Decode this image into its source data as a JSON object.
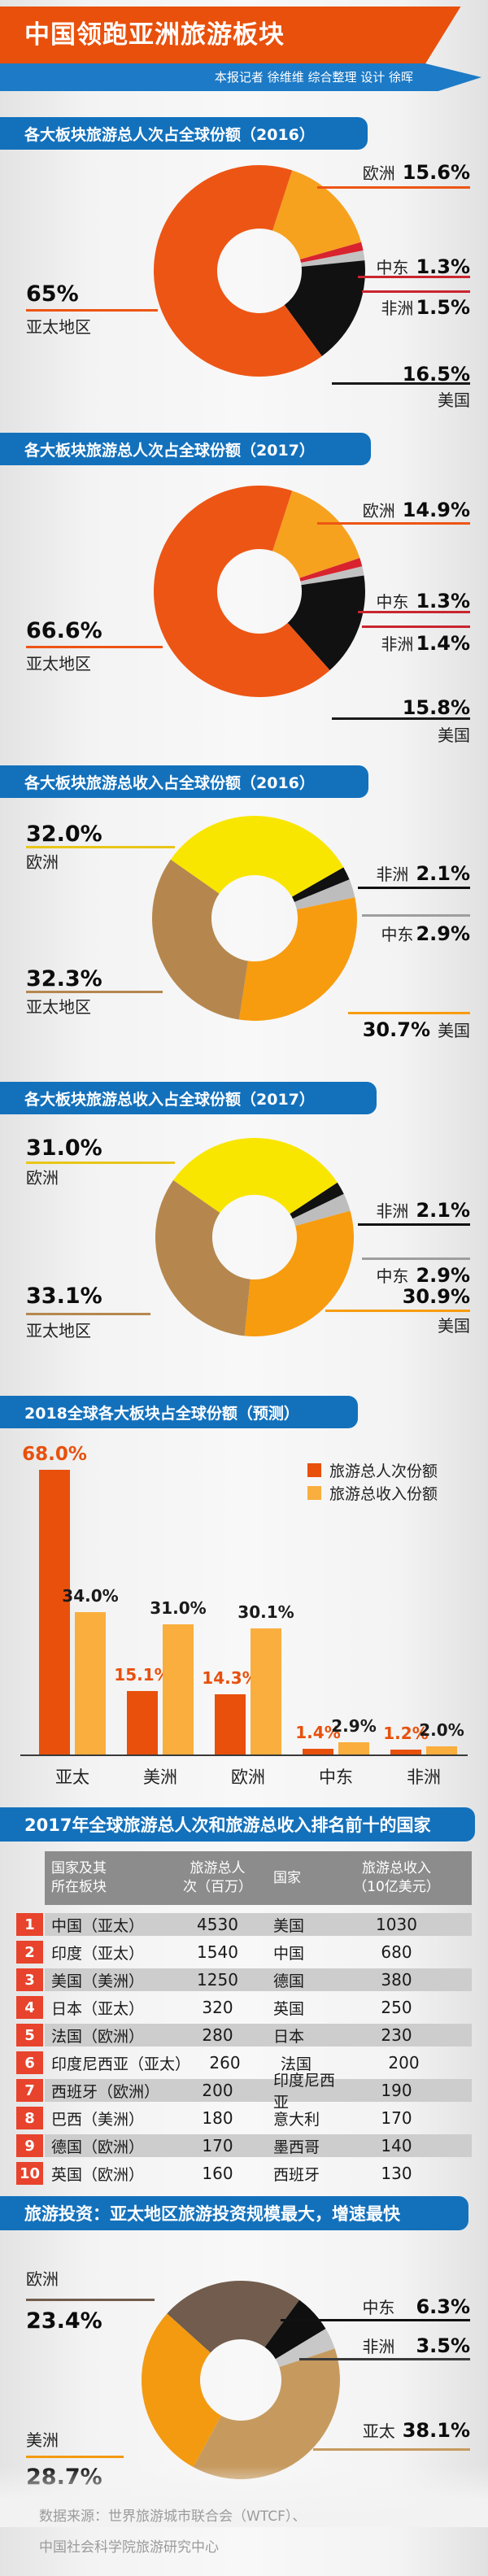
{
  "header": {
    "title": "中国领跑亚洲旅游板块",
    "byline": "本报记者 徐维维 综合整理 设计 徐晖"
  },
  "footer": {
    "source_line1": "数据来源：世界旅游城市联合会（WTCF）、",
    "source_line2": "中国社会科学院旅游研究中心"
  },
  "chart_data": [
    {
      "type": "donut",
      "title": "各大板块旅游总人次占全球份额（2016）",
      "start_angle": 18,
      "slices": [
        {
          "name": "欧洲",
          "value": 15.6,
          "display": "15.6%",
          "color": "#F6A21F"
        },
        {
          "name": "中东",
          "value": 1.3,
          "display": "1.3%",
          "color": "#D8232F"
        },
        {
          "name": "非洲",
          "value": 1.5,
          "display": "1.5%",
          "color": "#C2C2C2"
        },
        {
          "name": "美国",
          "value": 16.5,
          "display": "16.5%",
          "color": "#111111"
        },
        {
          "name": "亚太地区",
          "value": 65.0,
          "display": "65%",
          "color": "#ED5514"
        }
      ]
    },
    {
      "type": "donut",
      "title": "各大板块旅游总人次占全球份额（2017）",
      "start_angle": 18,
      "slices": [
        {
          "name": "欧洲",
          "value": 14.9,
          "display": "14.9%",
          "color": "#F6A21F"
        },
        {
          "name": "中东",
          "value": 1.3,
          "display": "1.3%",
          "color": "#D8232F"
        },
        {
          "name": "非洲",
          "value": 1.4,
          "display": "1.4%",
          "color": "#C2C2C2"
        },
        {
          "name": "美国",
          "value": 15.8,
          "display": "15.8%",
          "color": "#111111"
        },
        {
          "name": "亚太地区",
          "value": 66.6,
          "display": "66.6%",
          "color": "#ED5514"
        }
      ]
    },
    {
      "type": "donut",
      "title": "各大板块旅游总收入占全球份额（2016）",
      "start_angle": -55,
      "slices": [
        {
          "name": "欧洲",
          "value": 32.0,
          "display": "32.0%",
          "color": "#F9E600"
        },
        {
          "name": "非洲",
          "value": 2.1,
          "display": "2.1%",
          "color": "#111111"
        },
        {
          "name": "中东",
          "value": 2.9,
          "display": "2.9%",
          "color": "#BDBDBD"
        },
        {
          "name": "美国",
          "value": 30.7,
          "display": "30.7%",
          "color": "#F79C0F"
        },
        {
          "name": "亚太地区",
          "value": 32.3,
          "display": "32.3%",
          "color": "#B5874E"
        }
      ]
    },
    {
      "type": "donut",
      "title": "各大板块旅游总收入占全球份额（2017）",
      "start_angle": -55,
      "slices": [
        {
          "name": "欧洲",
          "value": 31.0,
          "display": "31.0%",
          "color": "#F9E600"
        },
        {
          "name": "非洲",
          "value": 2.1,
          "display": "2.1%",
          "color": "#111111"
        },
        {
          "name": "中东",
          "value": 2.9,
          "display": "2.9%",
          "color": "#BDBDBD"
        },
        {
          "name": "美国",
          "value": 30.9,
          "display": "30.9%",
          "color": "#F79C0F"
        },
        {
          "name": "亚太地区",
          "value": 33.1,
          "display": "33.1%",
          "color": "#B5874E"
        }
      ]
    },
    {
      "type": "bar",
      "title": "2018全球各大板块占全球份额（预测）",
      "categories": [
        "亚太",
        "美洲",
        "欧洲",
        "中东",
        "非洲"
      ],
      "ylim": [
        0,
        70
      ],
      "series": [
        {
          "name": "旅游总人次份额",
          "color": "#E8500C",
          "values": [
            68.0,
            15.1,
            14.3,
            1.4,
            1.2
          ],
          "labels": [
            "68.0%",
            "15.1%",
            "14.3%",
            "1.4%",
            "1.2%"
          ]
        },
        {
          "name": "旅游总收入份额",
          "color": "#F9AE3D",
          "values": [
            34.0,
            31.0,
            30.1,
            2.9,
            2.0
          ],
          "labels": [
            "34.0%",
            "31.0%",
            "30.1%",
            "2.9%",
            "2.0%"
          ]
        }
      ]
    },
    {
      "type": "table",
      "title": "2017年全球旅游总人次和旅游总收入排名前十的国家",
      "columns": [
        "国家及其\n所在板块",
        "旅游总人\n次（百万）",
        "国家",
        "旅游总收入\n（10亿美元）"
      ],
      "rows": [
        [
          "1",
          "中国（亚太）",
          "4530",
          "美国",
          "1030"
        ],
        [
          "2",
          "印度（亚太）",
          "1540",
          "中国",
          "680"
        ],
        [
          "3",
          "美国（美洲）",
          "1250",
          "德国",
          "380"
        ],
        [
          "4",
          "日本（亚太）",
          "320",
          "英国",
          "250"
        ],
        [
          "5",
          "法国（欧洲）",
          "280",
          "日本",
          "230"
        ],
        [
          "6",
          "印度尼西亚（亚太）",
          "260",
          "法国",
          "200"
        ],
        [
          "7",
          "西班牙（欧洲）",
          "200",
          "印度尼西亚",
          "190"
        ],
        [
          "8",
          "巴西（美洲）",
          "180",
          "意大利",
          "170"
        ],
        [
          "9",
          "德国（欧洲）",
          "170",
          "墨西哥",
          "140"
        ],
        [
          "10",
          "英国（欧洲）",
          "160",
          "西班牙",
          "130"
        ]
      ]
    },
    {
      "type": "donut",
      "title": "旅游投资：亚太地区旅游投资规模最大，增速最快",
      "start_angle": -48,
      "slices": [
        {
          "name": "欧洲",
          "value": 23.4,
          "display": "23.4%",
          "color": "#715C4D"
        },
        {
          "name": "中东",
          "value": 6.3,
          "display": "6.3%",
          "color": "#0F0F0F"
        },
        {
          "name": "非洲",
          "value": 3.5,
          "display": "3.5%",
          "color": "#C8C8C8"
        },
        {
          "name": "亚太",
          "value": 38.1,
          "display": "38.1%",
          "color": "#C69A5F"
        },
        {
          "name": "美洲",
          "value": 28.7,
          "display": "28.7%",
          "color": "#F39A11"
        }
      ]
    }
  ]
}
